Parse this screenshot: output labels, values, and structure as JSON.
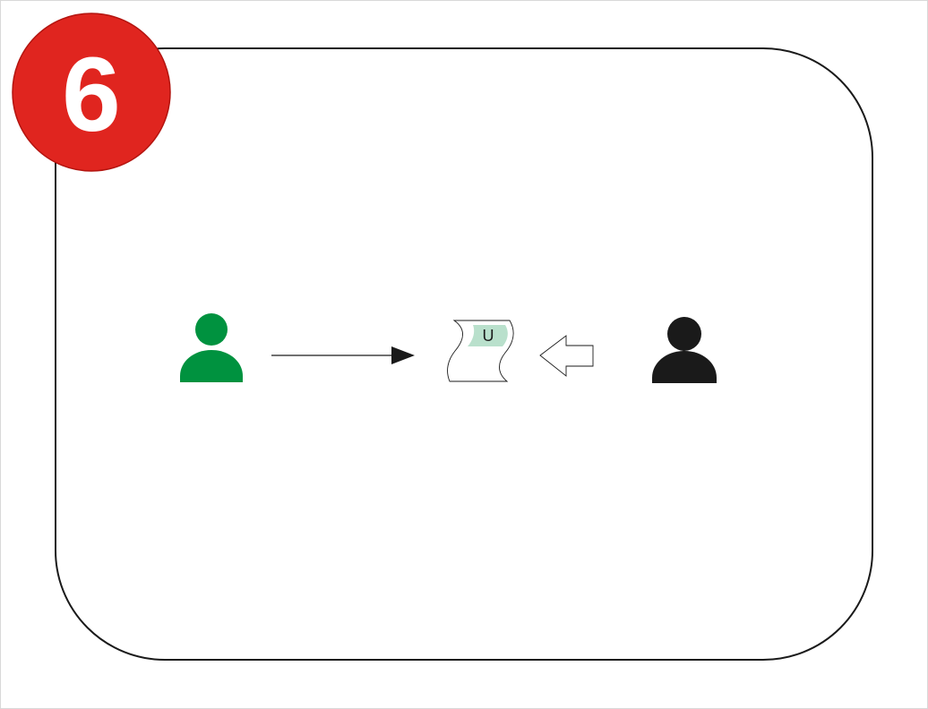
{
  "step": {
    "number": "6",
    "badge_color": "#e0251f",
    "number_color": "#ffffff"
  },
  "sender": {
    "icon": "person-icon",
    "color": "#00923f"
  },
  "receiver": {
    "icon": "person-icon",
    "color": "#1a1a1a"
  },
  "token": {
    "icon": "scroll-document-icon",
    "label": "U",
    "label_bg_color": "#b9e0cc"
  },
  "arrows": {
    "transfer": "solid-arrow-right",
    "request": "outline-arrow-left"
  },
  "frame": {
    "border_color": "#1a1a1a"
  }
}
